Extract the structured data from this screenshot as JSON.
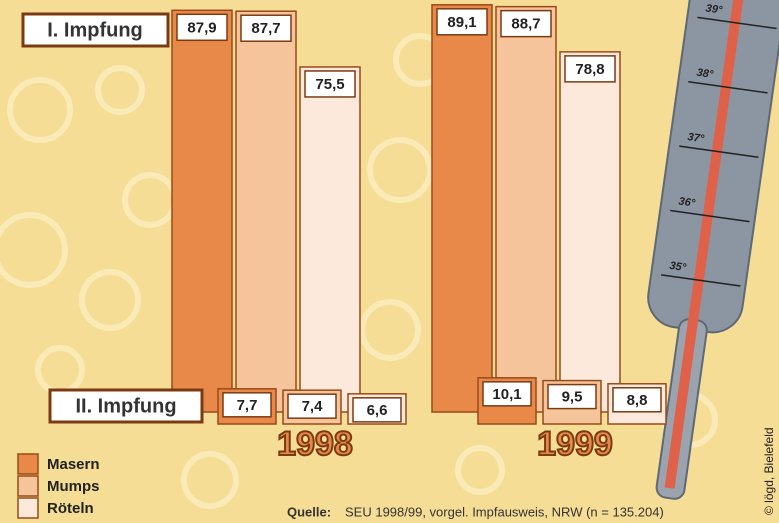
{
  "chart_data": {
    "type": "bar",
    "first_label": "I. Impfung",
    "second_label": "II. Impfung",
    "categories": [
      "1998",
      "1999"
    ],
    "series": [
      {
        "name": "Masern",
        "color": "#e8894a",
        "values": [
          87.9,
          89.1
        ],
        "value_labels": [
          "87,9",
          "89,1"
        ],
        "second_values": [
          7.7,
          10.1
        ],
        "second_value_labels": [
          "7,7",
          "10,1"
        ]
      },
      {
        "name": "Mumps",
        "color": "#f6c49a",
        "values": [
          87.7,
          88.7
        ],
        "value_labels": [
          "87,7",
          "88,7"
        ],
        "second_values": [
          7.4,
          9.5
        ],
        "second_value_labels": [
          "7,4",
          "9,5"
        ]
      },
      {
        "name": "Röteln",
        "color": "#fce9dc",
        "values": [
          75.5,
          78.8
        ],
        "value_labels": [
          "75,5",
          "78,8"
        ],
        "second_values": [
          6.6,
          8.8
        ],
        "second_value_labels": [
          "6,6",
          "8,8"
        ]
      }
    ],
    "thermometer_labels": [
      "39°",
      "38°",
      "37°",
      "36°",
      "35°"
    ],
    "source_label": "Quelle:",
    "source": "SEU 1998/99, vorgel. Impfausweis, NRW (n = 135.204)",
    "credit": "© lögd, Bielefeld"
  }
}
